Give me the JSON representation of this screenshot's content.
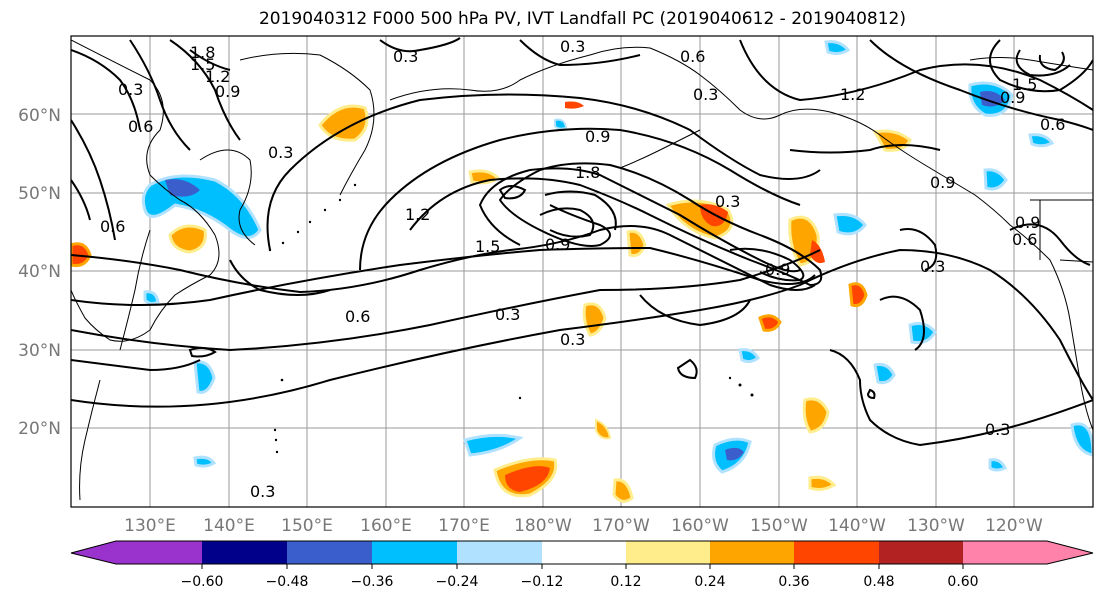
{
  "title": "2019040312 F000 500 hPa PV, IVT Landfall PC (2019040612 - 2019040812)",
  "lat_labels": [
    "60°N",
    "50°N",
    "40°N",
    "30°N",
    "20°N"
  ],
  "lon_labels": [
    "130°E",
    "140°E",
    "150°E",
    "160°E",
    "170°E",
    "180°W",
    "170°W",
    "160°W",
    "150°W",
    "140°W",
    "130°W",
    "120°W"
  ],
  "colorbar": {
    "labels": [
      "−0.60",
      "−0.48",
      "−0.36",
      "−0.24",
      "−0.12",
      "0.12",
      "0.24",
      "0.36",
      "0.48",
      "0.60"
    ],
    "colors": [
      "#9a32cd",
      "#00008b",
      "#3a5fcd",
      "#00bfff",
      "#b0e2ff",
      "#ffffff",
      "#ffec8b",
      "#ffa500",
      "#ff4500",
      "#b22222",
      "#ff82ab"
    ]
  },
  "contour_labels": [
    "1.8",
    "1.5",
    "1.2",
    "0.9",
    "0.6",
    "0.3",
    "0.3",
    "0.6",
    "0.3",
    "0.9",
    "1.8",
    "1.5",
    "1.2",
    "0.6",
    "0.3",
    "0.3",
    "0.9",
    "0.3",
    "0.3",
    "0.9",
    "0.6",
    "1.2",
    "0.9",
    "0.6",
    "0.3",
    "0.3",
    "0.3",
    "0.3",
    "0.6",
    "0.9",
    "1.5",
    "0.9"
  ]
}
